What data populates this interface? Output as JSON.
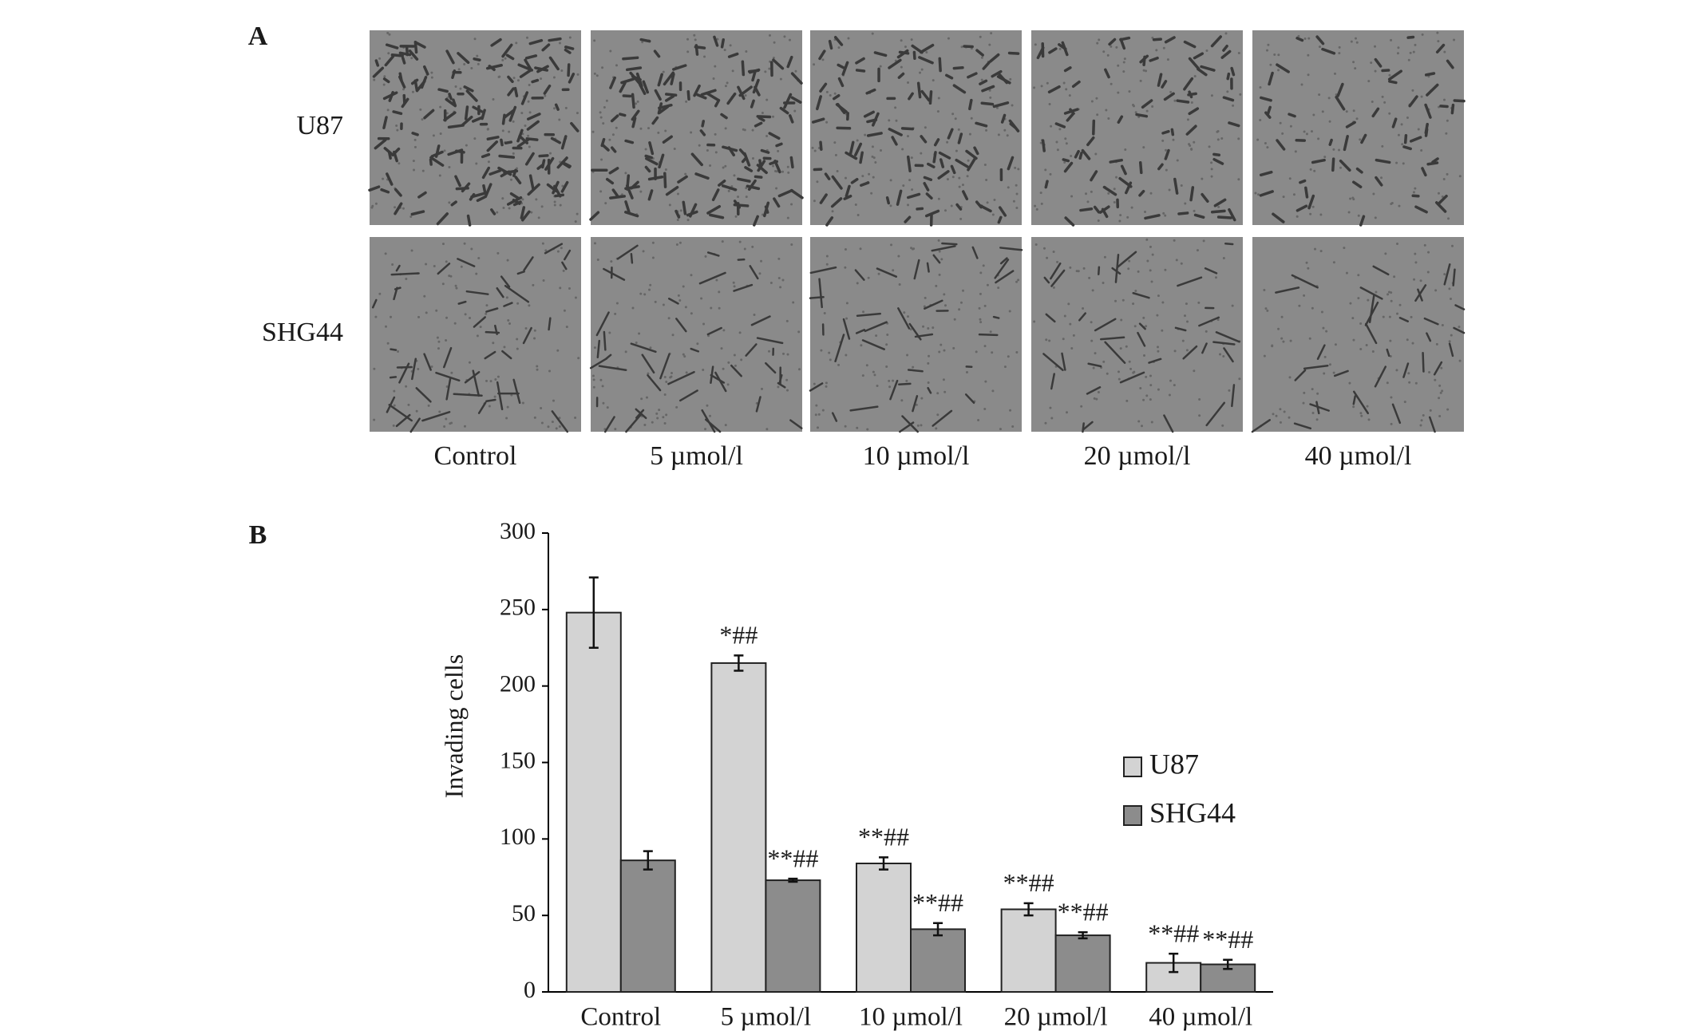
{
  "panel_a": {
    "label": "A",
    "rows": [
      "U87",
      "SHG44"
    ],
    "columns": [
      "Control",
      "5 µmol/l",
      "10 µmol/l",
      "20 µmol/l",
      "40 µmol/l"
    ]
  },
  "panel_b": {
    "label": "B"
  },
  "chart_data": {
    "type": "bar",
    "y_label": "Invading cells",
    "categories": [
      "Control",
      "5 µmol/l",
      "10 µmol/l",
      "20 µmol/l",
      "40 µmol/l"
    ],
    "series": [
      {
        "name": "U87",
        "color": "#d3d3d3",
        "values": [
          248,
          215,
          84,
          54,
          19
        ],
        "errors": [
          23,
          5,
          4,
          4,
          6
        ],
        "annotations": [
          null,
          "*##",
          "**##",
          "**##",
          "**##"
        ]
      },
      {
        "name": "SHG44",
        "color": "#8c8c8c",
        "values": [
          86,
          73,
          41,
          37,
          18
        ],
        "errors": [
          6,
          1,
          4,
          2,
          3
        ],
        "annotations": [
          null,
          "**##",
          "**##",
          "**##",
          "**##"
        ]
      }
    ],
    "ylim": [
      0,
      300
    ],
    "yticks": [
      0,
      50,
      100,
      150,
      200,
      250,
      300
    ],
    "grid": false,
    "legend": "right"
  }
}
